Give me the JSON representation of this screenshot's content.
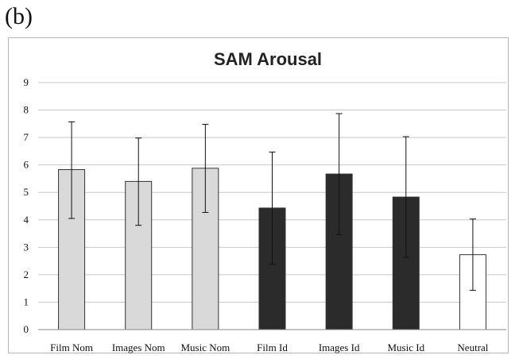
{
  "panel_label": "(b)",
  "chart_data": {
    "type": "bar",
    "title": "SAM Arousal",
    "xlabel": "",
    "ylabel": "",
    "ylim": [
      0,
      9
    ],
    "yticks": [
      0,
      1,
      2,
      3,
      4,
      5,
      6,
      7,
      8,
      9
    ],
    "grid": true,
    "categories": [
      "Film Nom",
      "Images Nom",
      "Music Nom",
      "Film Id",
      "Images Id",
      "Music Id",
      "Neutral"
    ],
    "values": [
      5.83,
      5.4,
      5.88,
      4.43,
      5.67,
      4.83,
      2.73
    ],
    "error_low": [
      4.05,
      3.8,
      4.27,
      2.38,
      3.46,
      2.63,
      1.43
    ],
    "error_high": [
      7.57,
      6.98,
      7.48,
      6.47,
      7.87,
      7.03,
      4.03
    ],
    "bar_colors": [
      "#d9d9d9",
      "#d9d9d9",
      "#d9d9d9",
      "#2b2b2b",
      "#2b2b2b",
      "#2b2b2b",
      "#ffffff"
    ],
    "gridline_color": "#c8c8c8",
    "bar_edge_color": "#333333"
  }
}
